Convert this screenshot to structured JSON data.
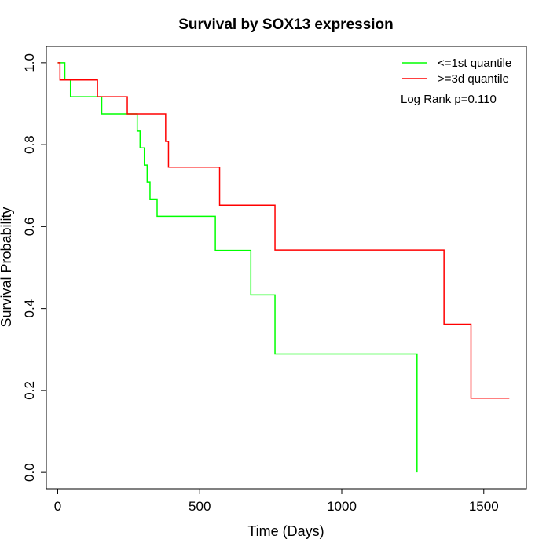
{
  "chart_data": {
    "type": "line",
    "title": "Survival by SOX13 expression",
    "xlabel": "Time (Days)",
    "ylabel": "Survival Probability",
    "xlim": [
      -40,
      1650
    ],
    "ylim": [
      -0.04,
      1.04
    ],
    "xticks": [
      0,
      500,
      1000,
      1500
    ],
    "xtick_labels": [
      "0",
      "500",
      "1000",
      "1500"
    ],
    "yticks": [
      0.0,
      0.2,
      0.4,
      0.6,
      0.8,
      1.0
    ],
    "ytick_labels": [
      "0.0",
      "0.2",
      "0.4",
      "0.6",
      "0.8",
      "1.0"
    ],
    "grid": false,
    "legend_position": "top-right",
    "annotation": "Log Rank p=0.110",
    "series": [
      {
        "name": "<=1st quantile",
        "color": "#00ff00",
        "step_x": [
          0,
          25,
          45,
          155,
          280,
          290,
          305,
          315,
          325,
          350,
          555,
          680,
          765,
          1265,
          1265
        ],
        "step_y": [
          1.0,
          0.958,
          0.917,
          0.875,
          0.833,
          0.792,
          0.75,
          0.708,
          0.667,
          0.625,
          0.542,
          0.433,
          0.289,
          0.289,
          0.0
        ]
      },
      {
        "name": ">=3d quantile",
        "color": "#ff0000",
        "step_x": [
          0,
          8,
          140,
          245,
          380,
          390,
          570,
          765,
          1360,
          1455,
          1590
        ],
        "step_y": [
          1.0,
          0.958,
          0.917,
          0.875,
          0.808,
          0.745,
          0.652,
          0.543,
          0.362,
          0.181,
          0.181
        ]
      }
    ]
  }
}
